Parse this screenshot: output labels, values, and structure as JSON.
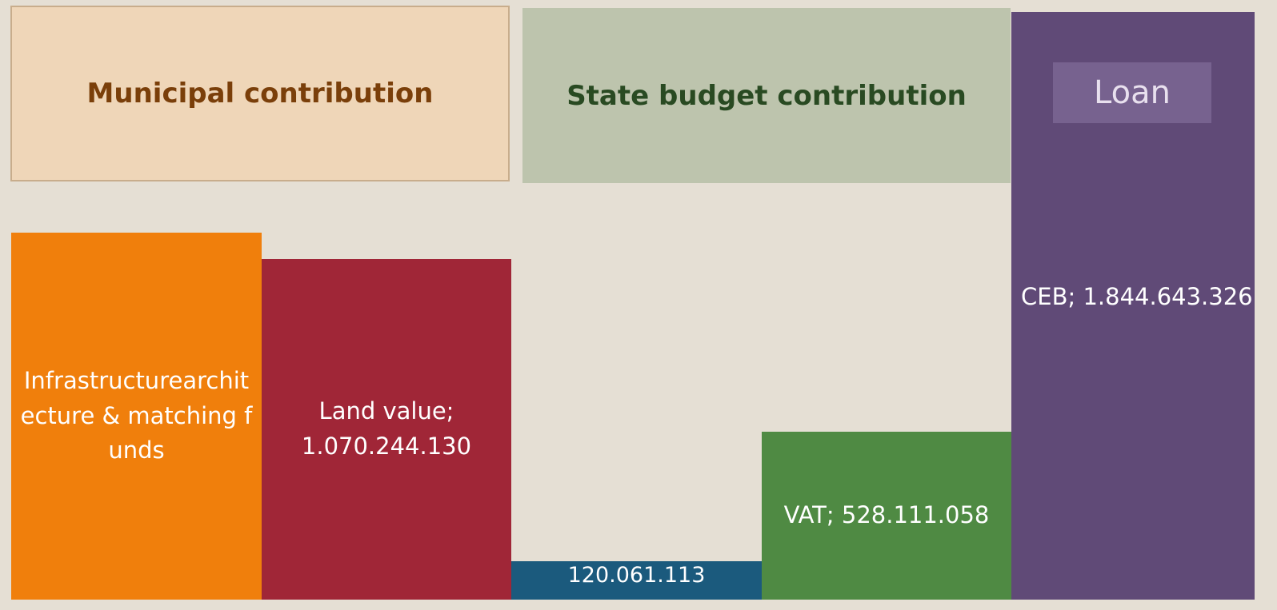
{
  "chart_data": {
    "type": "bar",
    "groups": [
      {
        "title": "Municipal contribution",
        "fill": "#efd6b8",
        "border": "#c8ad8c",
        "color": "#7a3f0a"
      },
      {
        "title": "State budget contribution",
        "fill": "#bdc4ad",
        "border": "#bdc4ad",
        "color": "#294a22"
      },
      {
        "title": "Loan",
        "fill": "#77628f",
        "border": "#77628f",
        "color": "#e8e0ee"
      }
    ],
    "labels": [
      "Infrastructurearchitecture & matching funds",
      "Land value; 1.070.244.130",
      "120.061.113",
      "VAT; 528.111.058",
      "CEB; 1.844.643.326"
    ],
    "values": [
      1152000000,
      1070244130,
      120061113,
      528111058,
      1844643326
    ],
    "colors": [
      "#f07f0c",
      "#a02637",
      "#1b5a7d",
      "#4f8a43",
      "#604a77"
    ]
  }
}
